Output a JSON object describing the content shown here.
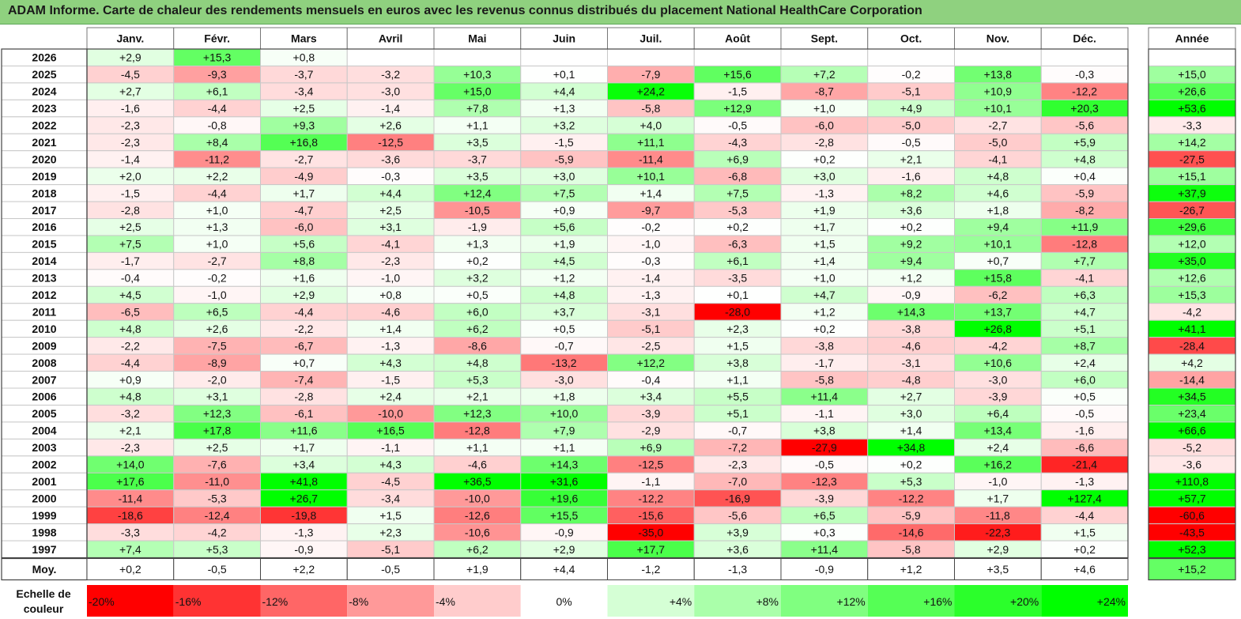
{
  "title": "ADAM Informe. Carte de chaleur des rendements mensuels en euros avec les revenus connus distribués du placement National HealthCare Corporation",
  "colors": {
    "title_bg": "#8fd17f",
    "negative_max": "#ff0000",
    "neutral": "#ffffff",
    "positive_max": "#00ff00"
  },
  "chart_data": {
    "type": "heatmap",
    "title": "ADAM Informe. Carte de chaleur des rendements mensuels en euros avec les revenus connus distribués du placement National HealthCare Corporation",
    "columns": [
      "Janv.",
      "Févr.",
      "Mars",
      "Avril",
      "Mai",
      "Juin",
      "Juil.",
      "Août",
      "Sept.",
      "Oct.",
      "Nov.",
      "Déc."
    ],
    "year_column_label": "Année",
    "rows": [
      {
        "year": "2026",
        "months": [
          "+2,9",
          "+15,3",
          "+0,8",
          "",
          "",
          "",
          "",
          "",
          "",
          "",
          "",
          ""
        ],
        "total": ""
      },
      {
        "year": "2025",
        "months": [
          "-4,5",
          "-9,3",
          "-3,7",
          "-3,2",
          "+10,3",
          "+0,1",
          "-7,9",
          "+15,6",
          "+7,2",
          "-0,2",
          "+13,8",
          "-0,3"
        ],
        "total": "+15,0"
      },
      {
        "year": "2024",
        "months": [
          "+2,7",
          "+6,1",
          "-3,4",
          "-3,0",
          "+15,0",
          "+4,4",
          "+24,2",
          "-1,5",
          "-8,7",
          "-5,1",
          "+10,9",
          "-12,2"
        ],
        "total": "+26,6"
      },
      {
        "year": "2023",
        "months": [
          "-1,6",
          "-4,4",
          "+2,5",
          "-1,4",
          "+7,8",
          "+1,3",
          "-5,8",
          "+12,9",
          "+1,0",
          "+4,9",
          "+10,1",
          "+20,3"
        ],
        "total": "+53,6"
      },
      {
        "year": "2022",
        "months": [
          "-2,3",
          "-0,8",
          "+9,3",
          "+2,6",
          "+1,1",
          "+3,2",
          "+4,0",
          "-0,5",
          "-6,0",
          "-5,0",
          "-2,7",
          "-5,6"
        ],
        "total": "-3,3"
      },
      {
        "year": "2021",
        "months": [
          "-2,3",
          "+8,4",
          "+16,8",
          "-12,5",
          "+3,5",
          "-1,5",
          "+11,1",
          "-4,3",
          "-2,8",
          "-0,5",
          "-5,0",
          "+5,9"
        ],
        "total": "+14,2"
      },
      {
        "year": "2020",
        "months": [
          "-1,4",
          "-11,2",
          "-2,7",
          "-3,6",
          "-3,7",
          "-5,9",
          "-11,4",
          "+6,9",
          "+0,2",
          "+2,1",
          "-4,1",
          "+4,8"
        ],
        "total": "-27,5"
      },
      {
        "year": "2019",
        "months": [
          "+2,0",
          "+2,2",
          "-4,9",
          "-0,3",
          "+3,5",
          "+3,0",
          "+10,1",
          "-6,8",
          "+3,0",
          "-1,6",
          "+4,8",
          "+0,4"
        ],
        "total": "+15,1"
      },
      {
        "year": "2018",
        "months": [
          "-1,5",
          "-4,4",
          "+1,7",
          "+4,4",
          "+12,4",
          "+7,5",
          "+1,4",
          "+7,5",
          "-1,3",
          "+8,2",
          "+4,6",
          "-5,9"
        ],
        "total": "+37,9"
      },
      {
        "year": "2017",
        "months": [
          "-2,8",
          "+1,0",
          "-4,7",
          "+2,5",
          "-10,5",
          "+0,9",
          "-9,7",
          "-5,3",
          "+1,9",
          "+3,6",
          "+1,8",
          "-8,2"
        ],
        "total": "-26,7"
      },
      {
        "year": "2016",
        "months": [
          "+2,5",
          "+1,3",
          "-6,0",
          "+3,1",
          "-1,9",
          "+5,6",
          "-0,2",
          "+0,2",
          "+1,7",
          "+0,2",
          "+9,4",
          "+11,9"
        ],
        "total": "+29,6"
      },
      {
        "year": "2015",
        "months": [
          "+7,5",
          "+1,0",
          "+5,6",
          "-4,1",
          "+1,3",
          "+1,9",
          "-1,0",
          "-6,3",
          "+1,5",
          "+9,2",
          "+10,1",
          "-12,8"
        ],
        "total": "+12,0"
      },
      {
        "year": "2014",
        "months": [
          "-1,7",
          "-2,7",
          "+8,8",
          "-2,3",
          "+0,2",
          "+4,5",
          "-0,3",
          "+6,1",
          "+1,4",
          "+9,4",
          "+0,7",
          "+7,7"
        ],
        "total": "+35,0"
      },
      {
        "year": "2013",
        "months": [
          "-0,4",
          "-0,2",
          "+1,6",
          "-1,0",
          "+3,2",
          "+1,2",
          "-1,4",
          "-3,5",
          "+1,0",
          "+1,2",
          "+15,8",
          "-4,1"
        ],
        "total": "+12,6"
      },
      {
        "year": "2012",
        "months": [
          "+4,5",
          "-1,0",
          "+2,9",
          "+0,8",
          "+0,5",
          "+4,8",
          "-1,3",
          "+0,1",
          "+4,7",
          "-0,9",
          "-6,2",
          "+6,3"
        ],
        "total": "+15,3"
      },
      {
        "year": "2011",
        "months": [
          "-6,5",
          "+6,5",
          "-4,4",
          "-4,6",
          "+6,0",
          "+3,7",
          "-3,1",
          "-28,0",
          "+1,2",
          "+14,3",
          "+13,7",
          "+4,7"
        ],
        "total": "-4,2"
      },
      {
        "year": "2010",
        "months": [
          "+4,8",
          "+2,6",
          "-2,2",
          "+1,4",
          "+6,2",
          "+0,5",
          "-5,1",
          "+2,3",
          "+0,2",
          "-3,8",
          "+26,8",
          "+5,1"
        ],
        "total": "+41,1"
      },
      {
        "year": "2009",
        "months": [
          "-2,2",
          "-7,5",
          "-6,7",
          "-1,3",
          "-8,6",
          "-0,7",
          "-2,5",
          "+1,5",
          "-3,8",
          "-4,6",
          "-4,2",
          "+8,7"
        ],
        "total": "-28,4"
      },
      {
        "year": "2008",
        "months": [
          "-4,4",
          "-8,9",
          "+0,7",
          "+4,3",
          "+4,8",
          "-13,2",
          "+12,2",
          "+3,8",
          "-1,7",
          "-3,1",
          "+10,6",
          "+2,4"
        ],
        "total": "+4,2"
      },
      {
        "year": "2007",
        "months": [
          "+0,9",
          "-2,0",
          "-7,4",
          "-1,5",
          "+5,3",
          "-3,0",
          "-0,4",
          "+1,1",
          "-5,8",
          "-4,8",
          "-3,0",
          "+6,0"
        ],
        "total": "-14,4"
      },
      {
        "year": "2006",
        "months": [
          "+4,8",
          "+3,1",
          "-2,8",
          "+2,4",
          "+2,1",
          "+1,8",
          "+3,4",
          "+5,5",
          "+11,4",
          "+2,7",
          "-3,9",
          "+0,5"
        ],
        "total": "+34,5"
      },
      {
        "year": "2005",
        "months": [
          "-3,2",
          "+12,3",
          "-6,1",
          "-10,0",
          "+12,3",
          "+10,0",
          "-3,9",
          "+5,1",
          "-1,1",
          "+3,0",
          "+6,4",
          "-0,5"
        ],
        "total": "+23,4"
      },
      {
        "year": "2004",
        "months": [
          "+2,1",
          "+17,8",
          "+11,6",
          "+16,5",
          "-12,8",
          "+7,9",
          "-2,9",
          "-0,7",
          "+3,8",
          "+1,4",
          "+13,4",
          "-1,6"
        ],
        "total": "+66,6"
      },
      {
        "year": "2003",
        "months": [
          "-2,3",
          "+2,5",
          "+1,7",
          "-1,1",
          "+1,1",
          "+1,1",
          "+6,9",
          "-7,2",
          "-27,9",
          "+34,8",
          "+2,4",
          "-6,6"
        ],
        "total": "-5,2"
      },
      {
        "year": "2002",
        "months": [
          "+14,0",
          "-7,6",
          "+3,4",
          "+4,3",
          "-4,6",
          "+14,3",
          "-12,5",
          "-2,3",
          "-0,5",
          "+0,2",
          "+16,2",
          "-21,4"
        ],
        "total": "-3,6"
      },
      {
        "year": "2001",
        "months": [
          "+17,6",
          "-11,0",
          "+41,8",
          "-4,5",
          "+36,5",
          "+31,6",
          "-1,1",
          "-7,0",
          "-12,3",
          "+5,3",
          "-1,0",
          "-1,3"
        ],
        "total": "+110,8"
      },
      {
        "year": "2000",
        "months": [
          "-11,4",
          "-5,3",
          "+26,7",
          "-3,4",
          "-10,0",
          "+19,6",
          "-12,2",
          "-16,9",
          "-3,9",
          "-12,2",
          "+1,7",
          "+127,4"
        ],
        "total": "+57,7"
      },
      {
        "year": "1999",
        "months": [
          "-18,6",
          "-12,4",
          "-19,8",
          "+1,5",
          "-12,6",
          "+15,5",
          "-15,6",
          "-5,6",
          "+6,5",
          "-5,9",
          "-11,8",
          "-4,4"
        ],
        "total": "-60,6"
      },
      {
        "year": "1998",
        "months": [
          "-3,3",
          "-4,2",
          "-1,3",
          "+2,3",
          "-10,6",
          "-0,9",
          "-35,0",
          "+3,9",
          "+0,3",
          "-14,6",
          "-22,3",
          "+1,5"
        ],
        "total": "-43,5"
      },
      {
        "year": "1997",
        "months": [
          "+7,4",
          "+5,3",
          "-0,9",
          "-5,1",
          "+6,2",
          "+2,9",
          "+17,7",
          "+3,6",
          "+11,4",
          "-5,8",
          "+2,9",
          "+0,2"
        ],
        "total": "+52,3"
      }
    ],
    "average": {
      "label": "Moy.",
      "months": [
        "+0,2",
        "-0,5",
        "+2,2",
        "-0,5",
        "+1,9",
        "+4,4",
        "-1,2",
        "-1,3",
        "-0,9",
        "+1,2",
        "+3,5",
        "+4,6"
      ],
      "total": "+15,2"
    },
    "scale": {
      "label_lines": [
        "Echelle de",
        "couleur"
      ],
      "labels": [
        "-20%",
        "-16%",
        "-12%",
        "-8%",
        "-4%",
        "0%",
        "+4%",
        "+8%",
        "+12%",
        "+16%",
        "+20%",
        "+24%"
      ],
      "values": [
        -20,
        -16,
        -12,
        -8,
        -4,
        0,
        4,
        8,
        12,
        16,
        20,
        24
      ]
    }
  }
}
